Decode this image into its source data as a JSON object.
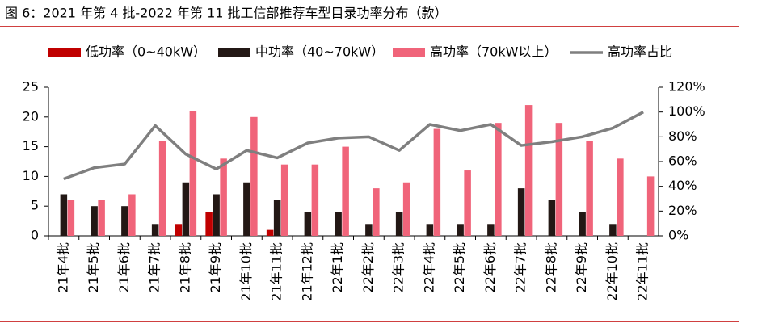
{
  "chart_data": {
    "type": "bar",
    "title": "图 6：2021 年第 4 批-2022 年第 11 批工信部推荐车型目录功率分布（款）",
    "categories": [
      "21年4批",
      "21年5批",
      "21年6批",
      "21年7批",
      "21年8批",
      "21年9批",
      "21年10批",
      "21年11批",
      "21年12批",
      "22年1批",
      "22年2批",
      "22年3批",
      "22年4批",
      "22年5批",
      "22年6批",
      "22年7批",
      "22年8批",
      "22年9批",
      "22年10批",
      "22年11批"
    ],
    "series": [
      {
        "name": "低功率（0~40kW）",
        "color": "#c00000",
        "values": [
          0,
          0,
          0,
          0,
          2,
          4,
          0,
          1,
          0,
          0,
          0,
          0,
          0,
          0,
          0,
          0,
          0,
          0,
          0,
          0
        ]
      },
      {
        "name": "中功率（40~70kW）",
        "color": "#231815",
        "values": [
          7,
          5,
          5,
          2,
          9,
          7,
          9,
          6,
          4,
          4,
          2,
          4,
          2,
          2,
          2,
          8,
          6,
          4,
          2,
          0
        ]
      },
      {
        "name": "高功率（70kW以上）",
        "color": "#f0647a",
        "values": [
          6,
          6,
          7,
          16,
          21,
          13,
          20,
          12,
          12,
          15,
          8,
          9,
          18,
          11,
          19,
          22,
          19,
          16,
          13,
          10
        ]
      },
      {
        "name": "高功率占比",
        "color": "#7f7f7f",
        "axis": "y2",
        "values": [
          46,
          55,
          58,
          89,
          66,
          54,
          69,
          63,
          75,
          79,
          80,
          69,
          90,
          85,
          90,
          73,
          76,
          80,
          87,
          100
        ]
      }
    ],
    "ylim": [
      0,
      25
    ],
    "yticks": [
      0,
      5,
      10,
      15,
      20,
      25
    ],
    "y2lim": [
      0,
      120
    ],
    "y2ticks": [
      {
        "value": 0,
        "label": "0%"
      },
      {
        "value": 20,
        "label": "20%"
      },
      {
        "value": 40,
        "label": "40%"
      },
      {
        "value": 60,
        "label": "60%"
      },
      {
        "value": 80,
        "label": "80%"
      },
      {
        "value": 100,
        "label": "100%"
      },
      {
        "value": 120,
        "label": "120%"
      }
    ],
    "grid": false
  }
}
